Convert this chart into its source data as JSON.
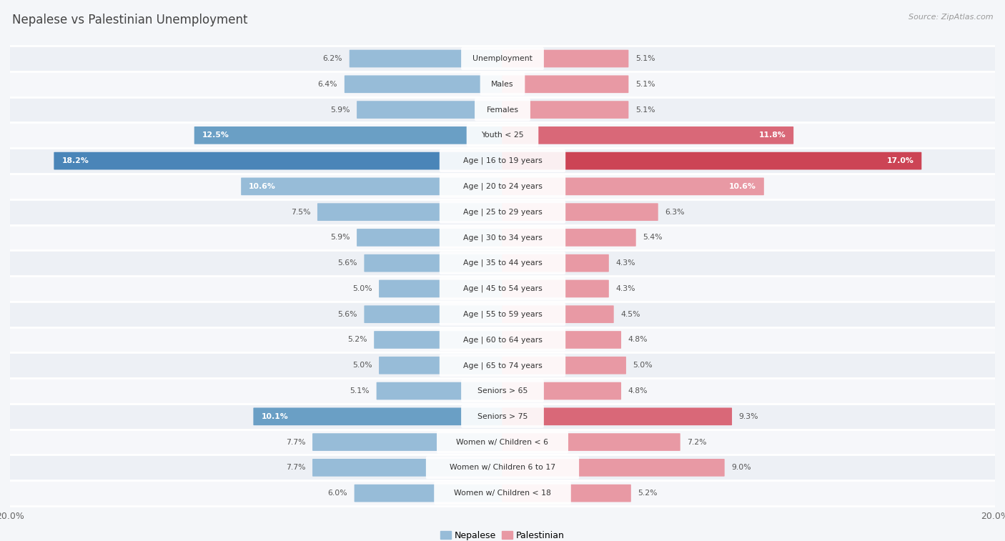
{
  "title": "Nepalese vs Palestinian Unemployment",
  "source": "Source: ZipAtlas.com",
  "categories": [
    "Unemployment",
    "Males",
    "Females",
    "Youth < 25",
    "Age | 16 to 19 years",
    "Age | 20 to 24 years",
    "Age | 25 to 29 years",
    "Age | 30 to 34 years",
    "Age | 35 to 44 years",
    "Age | 45 to 54 years",
    "Age | 55 to 59 years",
    "Age | 60 to 64 years",
    "Age | 65 to 74 years",
    "Seniors > 65",
    "Seniors > 75",
    "Women w/ Children < 6",
    "Women w/ Children 6 to 17",
    "Women w/ Children < 18"
  ],
  "nepalese": [
    6.2,
    6.4,
    5.9,
    12.5,
    18.2,
    10.6,
    7.5,
    5.9,
    5.6,
    5.0,
    5.6,
    5.2,
    5.0,
    5.1,
    10.1,
    7.7,
    7.7,
    6.0
  ],
  "palestinian": [
    5.1,
    5.1,
    5.1,
    11.8,
    17.0,
    10.6,
    6.3,
    5.4,
    4.3,
    4.3,
    4.5,
    4.8,
    5.0,
    4.8,
    9.3,
    7.2,
    9.0,
    5.2
  ],
  "nepalese_color_normal": "#97bcd8",
  "nepalese_color_highlight": "#6a9fc5",
  "nepalese_color_strong": "#4a85b8",
  "palestinian_color_normal": "#e899a4",
  "palestinian_color_highlight": "#d96878",
  "palestinian_color_strong": "#cc4455",
  "row_bg_even": "#edf0f5",
  "row_bg_odd": "#f6f7fa",
  "label_bg": "#ffffff",
  "max_val": 20.0,
  "legend_nepalese": "Nepalese",
  "legend_palestinian": "Palestinian",
  "x_tick_label": "20.0%",
  "highlight_indices": [
    3,
    4,
    14
  ],
  "strong_indices": [
    4
  ]
}
